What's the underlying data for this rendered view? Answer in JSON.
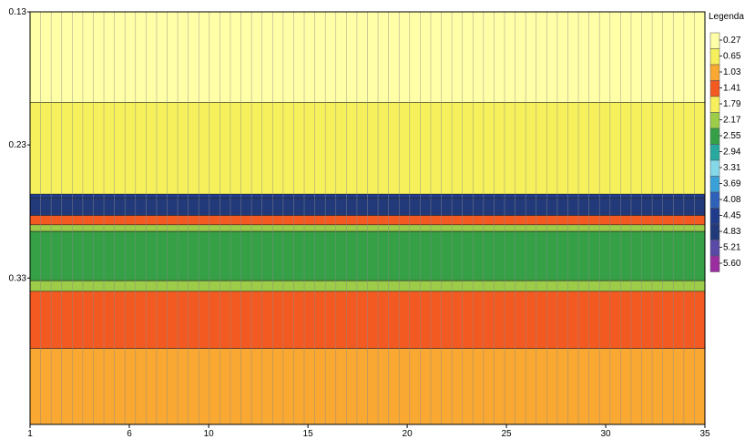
{
  "chart_data": {
    "type": "heatmap",
    "x_ticks": [
      "1",
      "6",
      "10",
      "15",
      "20",
      "25",
      "30",
      "35"
    ],
    "x_range": [
      1,
      35
    ],
    "y_ticks": [
      "0.13",
      "0.23",
      "0.33"
    ],
    "y_range": [
      0.13,
      0.44
    ],
    "legend_title": "Legenda",
    "legend_levels": [
      "0.27",
      "0.65",
      "1.03",
      "1.41",
      "1.79",
      "2.17",
      "2.55",
      "2.94",
      "3.31",
      "3.69",
      "4.08",
      "4.45",
      "4.83",
      "5.21",
      "5.60"
    ],
    "legend_colors": [
      "#ffffa8",
      "#f6f05c",
      "#f9a832",
      "#f25a22",
      "#f6f05c",
      "#9ccc48",
      "#35a046",
      "#28a9a0",
      "#84d8e8",
      "#3aa0d8",
      "#2e62b8",
      "#1f3c8c",
      "#233a7a",
      "#5a4aa8",
      "#9a2ea0"
    ],
    "bands": [
      {
        "from": 0.13,
        "to": 0.198,
        "level": 0.27
      },
      {
        "from": 0.198,
        "to": 0.267,
        "level": 0.65
      },
      {
        "from": 0.267,
        "to": 0.27,
        "level": 4.45
      },
      {
        "from": 0.27,
        "to": 0.283,
        "level": 4.83
      },
      {
        "from": 0.283,
        "to": 0.29,
        "level": 1.41
      },
      {
        "from": 0.29,
        "to": 0.295,
        "level": 2.17
      },
      {
        "from": 0.295,
        "to": 0.332,
        "level": 2.55
      },
      {
        "from": 0.332,
        "to": 0.34,
        "level": 2.17
      },
      {
        "from": 0.34,
        "to": 0.383,
        "level": 1.41
      },
      {
        "from": 0.383,
        "to": 0.44,
        "level": 1.03
      }
    ]
  }
}
